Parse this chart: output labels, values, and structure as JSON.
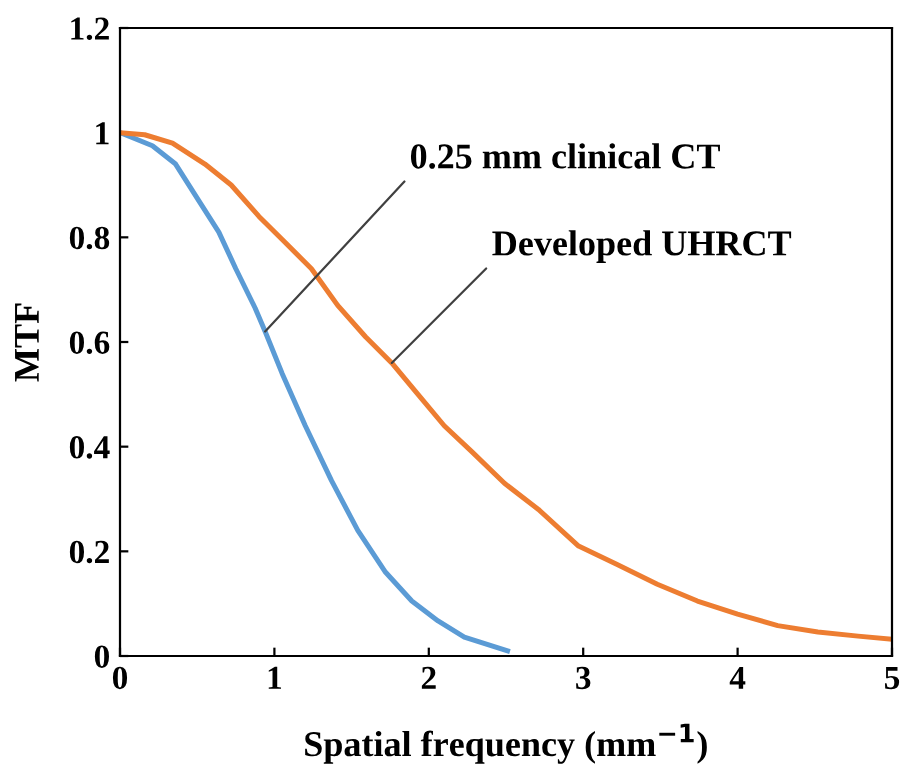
{
  "chart_data": {
    "type": "line",
    "xlabel": "Spatial frequency (mm$^{−1}$)",
    "ylabel": "MTF",
    "xlim": [
      0,
      5
    ],
    "ylim": [
      0,
      1.2
    ],
    "xticks": [
      0,
      1,
      2,
      3,
      4,
      5
    ],
    "yticks": [
      0,
      0.2,
      0.4,
      0.6,
      0.8,
      1,
      1.2
    ],
    "grid": false,
    "legend": false,
    "marker": "none",
    "line_style": "solid",
    "series": [
      {
        "color": "#5b9bd5",
        "x": [
          0,
          0.21,
          0.36,
          0.51,
          0.64,
          0.75,
          0.875,
          0.94,
          1.05,
          1.2,
          1.37,
          1.54,
          1.72,
          1.89,
          2.06,
          2.23,
          2.51
        ],
        "values": [
          1.0,
          0.975,
          0.94,
          0.87,
          0.81,
          0.74,
          0.665,
          0.62,
          0.54,
          0.44,
          0.335,
          0.24,
          0.16,
          0.105,
          0.067,
          0.036,
          0.01
        ]
      },
      {
        "color": "#ed7d31",
        "x": [
          0,
          0.16,
          0.34,
          0.55,
          0.72,
          0.9,
          1.07,
          1.24,
          1.41,
          1.59,
          1.76,
          1.93,
          2.1,
          2.28,
          2.49,
          2.71,
          2.97,
          3.22,
          3.48,
          3.74,
          4.0,
          4.26,
          4.52,
          4.78,
          5.0
        ],
        "values": [
          1.0,
          0.996,
          0.98,
          0.94,
          0.9,
          0.84,
          0.79,
          0.74,
          0.67,
          0.61,
          0.56,
          0.5,
          0.44,
          0.39,
          0.33,
          0.28,
          0.21,
          0.175,
          0.137,
          0.105,
          0.08,
          0.058,
          0.046,
          0.038,
          0.032
        ]
      }
    ],
    "annotations": [
      {
        "text": "0.25 mm clinical CT",
        "x": 0.94,
        "y": 0.62
      },
      {
        "text": "Developed UHRCT",
        "x": 1.76,
        "y": 0.56
      }
    ]
  }
}
